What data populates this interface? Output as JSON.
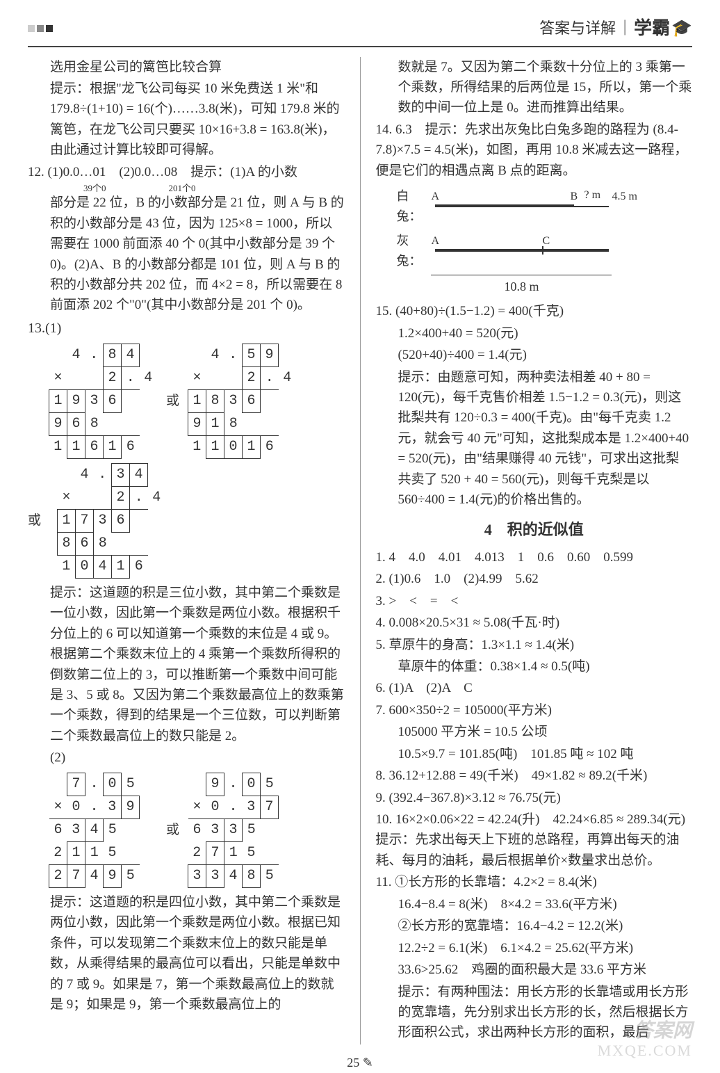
{
  "header": {
    "right_text": "答案与详解",
    "brand": "学霸"
  },
  "left_col": {
    "p1": "选用金星公司的篱笆比较合算",
    "p2": "提示：根据\"龙飞公司每买 10 米免费送 1 米\"和 179.8÷(1+10) = 16(个)……3.8(米)，可知 179.8 米的篱笆，在龙飞公司只要买 10×16+3.8 = 163.8(米)，由此通过计算比较即可得解。",
    "q12_a": "12. (1)0.0…01　(2)0.0…08　提示：(1)A 的小数",
    "q12_annot1": "39个0",
    "q12_annot2": "201个0",
    "q12_b": "部分是 22 位，B 的小数部分是 21 位，则 A 与 B 的积的小数部分是 43 位，因为 125×8 = 1000，所以需要在 1000 前面添 40 个 0(其中小数部分是 39 个 0)。(2)A、B 的小数部分都是 101 位，则 A 与 B 的积的小数部分共 202 位，而 4×2 = 8，所以需要在 8 前面添 202 个\"0\"(其中小数部分是 201 个 0)。",
    "q13_label": "13.(1)",
    "q13_or": "或",
    "q13_hint1": "提示：这道题的积是三位小数，其中第二个乘数是一位小数，因此第一个乘数是两位小数。根据积千分位上的 6 可以知道第一个乘数的末位是 4 或 9。根据第二个乘数末位上的 4 乘第一个乘数所得积的倒数第二位上的 3，可以推断第一个乘数中间可能是 3、5 或 8。又因为第二个乘数最高位上的数乘第一个乘数，得到的结果是一个三位数，可以判断第二个乘数最高位上的数只能是 2。",
    "q13_2_label": "(2)",
    "q13_hint2": "提示：这道题的积是四位小数，其中第二个乘数是两位小数，因此第一个乘数是两位小数。根据已知条件，可以发现第二个乘数末位上的数只能是单数，从乘得结果的最高位可以看出，只能是单数中的 7 或 9。如果是 7，第一个乘数最高位上的数就是 9；如果是 9，第一个乘数最高位上的"
  },
  "right_col": {
    "p1": "数就是 7。又因为第二个乘数十分位上的 3 乘第一个乘数，所得结果的后两位是 15，所以，第一个乘数的中间一位上是 0。进而推算出结果。",
    "q14": "14. 6.3　提示：先求出灰兔比白兔多跑的路程为 (8.4-7.8)×7.5 = 4.5(米)，如图，再用 10.8 米减去这一路程，便是它们的相遇点离 B 点的距离。",
    "diagram": {
      "white_label": "白兔：",
      "gray_label": "灰兔：",
      "A": "A",
      "B": "B",
      "C": "C",
      "qm": "? m",
      "d45": "4.5 m",
      "d108": "10.8 m"
    },
    "q15_a": "15. (40+80)÷(1.5−1.2) = 400(千克)",
    "q15_b": "1.2×400+40 = 520(元)",
    "q15_c": "(520+40)÷400 = 1.4(元)",
    "q15_d": "提示：由题意可知，两种卖法相差 40 + 80 = 120(元)，每千克售价相差 1.5−1.2 = 0.3(元)，则这批梨共有 120÷0.3 = 400(千克)。由\"每千克卖 1.2 元，就会亏 40 元\"可知，这批梨成本是 1.2×400+40 = 520(元)，由\"结果赚得 40 元钱\"，可求出这批梨共卖了 520 + 40 = 560(元)，则每千克梨是以 560÷400 = 1.4(元)的价格出售的。",
    "section4_title": "4　积的近似值",
    "a1": "1. 4　4.0　4.01　4.013　1　0.6　0.60　0.599",
    "a2": "2. (1)0.6　1.0　(2)4.99　5.62",
    "a3": "3. >　<　=　<",
    "a4": "4. 0.008×20.5×31 ≈ 5.08(千瓦·时)",
    "a5a": "5. 草原牛的身高：1.3×1.1 ≈ 1.4(米)",
    "a5b": "草原牛的体重：0.38×1.4 ≈ 0.5(吨)",
    "a6": "6. (1)A　(2)A　C",
    "a7a": "7. 600×350÷2 = 105000(平方米)",
    "a7b": "105000 平方米 = 10.5 公顷",
    "a7c": "10.5×9.7 = 101.85(吨)　101.85 吨 ≈ 102 吨",
    "a8": "8. 36.12+12.88 = 49(千米)　49×1.82 ≈ 89.2(千米)",
    "a9": "9. (392.4−367.8)×3.12 ≈ 76.75(元)",
    "a10": "10. 16×2×0.06×22 = 42.24(升)　42.24×6.85 ≈ 289.34(元)　提示：先求出每天上下班的总路程，再算出每天的油耗、每月的油耗，最后根据单价×数量求出总价。",
    "a11a": "11. ①长方形的长靠墙：4.2×2 = 8.4(米)",
    "a11b": "16.4−8.4 = 8(米)　8×4.2 = 33.6(平方米)",
    "a11c": "②长方形的宽靠墙：16.4−4.2 = 12.2(米)",
    "a11d": "12.2÷2 = 6.1(米)　6.1×4.2 = 25.62(平方米)",
    "a11e": "33.6>25.62　鸡圈的面积最大是 33.6 平方米",
    "a11f": "提示：有两种围法：用长方形的长靠墙或用长方形的宽靠墙，先分别求出长方形的长，然后根据长方形面积公式，求出两种长方形的面积，最后"
  },
  "page_num": "25",
  "watermark1": "答案网",
  "watermark2": "MXQE.COM",
  "mult_grids": {
    "g1": [
      [
        "",
        "4",
        ".",
        "8!",
        "4!"
      ],
      [
        "×",
        "",
        "",
        "2!",
        ".",
        "4"
      ],
      [
        "1!",
        "9!",
        "3",
        "6!",
        ""
      ],
      [
        "9!",
        "6!",
        "8",
        "",
        ""
      ],
      [
        "1",
        "1!",
        "6!",
        "1!",
        "6"
      ]
    ],
    "g2": [
      [
        "",
        "4",
        ".",
        "5!",
        "9!"
      ],
      [
        "×",
        "",
        "",
        "2!",
        ".",
        "4"
      ],
      [
        "1!",
        "8!",
        "3",
        "6!",
        ""
      ],
      [
        "9!",
        "1!",
        "8",
        "",
        ""
      ],
      [
        "1",
        "1!",
        "0!",
        "1!",
        "6"
      ]
    ],
    "g3": [
      [
        "",
        "4",
        ".",
        "3!",
        "4!"
      ],
      [
        "×",
        "",
        "",
        "2!",
        ".",
        "4"
      ],
      [
        "1!",
        "7!",
        "3",
        "6!",
        ""
      ],
      [
        "8!",
        "6!",
        "8",
        "",
        ""
      ],
      [
        "1",
        "0!",
        "4!",
        "1!",
        "6"
      ]
    ],
    "g4": [
      [
        "",
        "7!",
        ".",
        "0!",
        "5"
      ],
      [
        "×",
        "0",
        ".",
        "3",
        "9!"
      ],
      [
        "6",
        "3",
        "4!",
        "5",
        ""
      ],
      [
        "2",
        "1!",
        "1",
        "5",
        "",
        ""
      ],
      [
        "2!",
        "7!",
        "4",
        "9!",
        "5"
      ]
    ],
    "g5": [
      [
        "",
        "9!",
        ".",
        "0!",
        "5"
      ],
      [
        "×",
        "0",
        ".",
        "3",
        "7!"
      ],
      [
        "6",
        "3",
        "3!",
        "5",
        ""
      ],
      [
        "2",
        "7!",
        "1",
        "5",
        "",
        ""
      ],
      [
        "3!",
        "3!",
        "4",
        "8!",
        "5"
      ]
    ]
  }
}
